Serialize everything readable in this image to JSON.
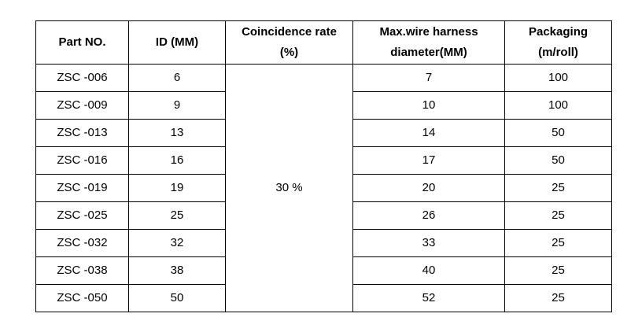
{
  "table": {
    "headers": {
      "part_no": "Part NO.",
      "id": "ID (MM)",
      "coincidence_line1": "Coincidence rate",
      "coincidence_line2": "(%)",
      "max_diameter_line1": "Max.wire harness",
      "max_diameter_line2": "diameter(MM)",
      "packaging_line1": "Packaging",
      "packaging_line2": "(m/roll)"
    },
    "coincidence_rate": "30 %",
    "rows": [
      {
        "part_no": "ZSC -006",
        "id": "6",
        "max_diameter": "7",
        "packaging": "100"
      },
      {
        "part_no": "ZSC -009",
        "id": "9",
        "max_diameter": "10",
        "packaging": "100"
      },
      {
        "part_no": "ZSC -013",
        "id": "13",
        "max_diameter": "14",
        "packaging": "50"
      },
      {
        "part_no": "ZSC -016",
        "id": "16",
        "max_diameter": "17",
        "packaging": "50"
      },
      {
        "part_no": "ZSC -019",
        "id": "19",
        "max_diameter": "20",
        "packaging": "25"
      },
      {
        "part_no": "ZSC -025",
        "id": "25",
        "max_diameter": "26",
        "packaging": "25"
      },
      {
        "part_no": "ZSC -032",
        "id": "32",
        "max_diameter": "33",
        "packaging": "25"
      },
      {
        "part_no": "ZSC -038",
        "id": "38",
        "max_diameter": "40",
        "packaging": "25"
      },
      {
        "part_no": "ZSC -050",
        "id": "50",
        "max_diameter": "52",
        "packaging": "25"
      }
    ]
  }
}
